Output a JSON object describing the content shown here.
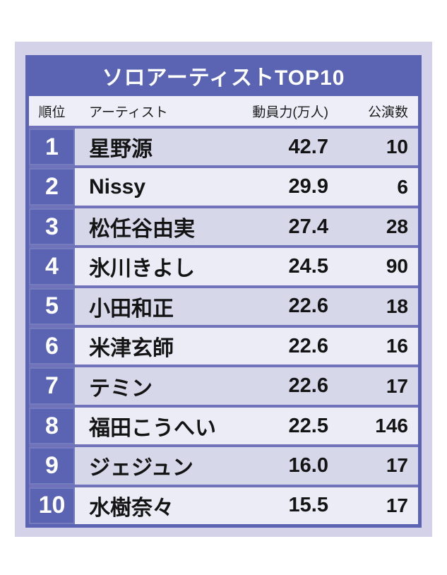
{
  "table": {
    "title": "ソロアーティストTOP10",
    "header": {
      "rank": "順位",
      "artist": "アーティスト",
      "power": "動員力(万人)",
      "shows": "公演数"
    },
    "rows": [
      {
        "rank": "1",
        "artist": "星野源",
        "power": "42.7",
        "shows": "10"
      },
      {
        "rank": "2",
        "artist": "Nissy",
        "power": "29.9",
        "shows": "6"
      },
      {
        "rank": "3",
        "artist": "松任谷由実",
        "power": "27.4",
        "shows": "28"
      },
      {
        "rank": "4",
        "artist": "氷川きよし",
        "power": "24.5",
        "shows": "90"
      },
      {
        "rank": "5",
        "artist": "小田和正",
        "power": "22.6",
        "shows": "18"
      },
      {
        "rank": "6",
        "artist": "米津玄師",
        "power": "22.6",
        "shows": "16"
      },
      {
        "rank": "7",
        "artist": "テミン",
        "power": "22.6",
        "shows": "17"
      },
      {
        "rank": "8",
        "artist": "福田こうへい",
        "power": "22.5",
        "shows": "146"
      },
      {
        "rank": "9",
        "artist": "ジェジュン",
        "power": "16.0",
        "shows": "17"
      },
      {
        "rank": "10",
        "artist": "水樹奈々",
        "power": "15.5",
        "shows": "17"
      }
    ],
    "colors": {
      "banner_blue": "#5a64b2",
      "separator": "#7073b9",
      "panel_lavender": "#d3d2e8",
      "header_bg": "#edeef7",
      "row_dark": "#d6d7e9",
      "row_light": "#ebecf6",
      "title_text": "#ffffff",
      "body_text": "#141414"
    }
  },
  "chart_data": {
    "type": "table",
    "title": "ソロアーティストTOP10",
    "columns": [
      "順位",
      "アーティスト",
      "動員力(万人)",
      "公演数"
    ],
    "rows": [
      [
        1,
        "星野源",
        42.7,
        10
      ],
      [
        2,
        "Nissy",
        29.9,
        6
      ],
      [
        3,
        "松任谷由実",
        27.4,
        28
      ],
      [
        4,
        "氷川きよし",
        24.5,
        90
      ],
      [
        5,
        "小田和正",
        22.6,
        18
      ],
      [
        6,
        "米津玄師",
        22.6,
        16
      ],
      [
        7,
        "テミン",
        22.6,
        17
      ],
      [
        8,
        "福田こうへい",
        22.5,
        146
      ],
      [
        9,
        "ジェジュン",
        16.0,
        17
      ],
      [
        10,
        "水樹奈々",
        15.5,
        17
      ]
    ]
  }
}
